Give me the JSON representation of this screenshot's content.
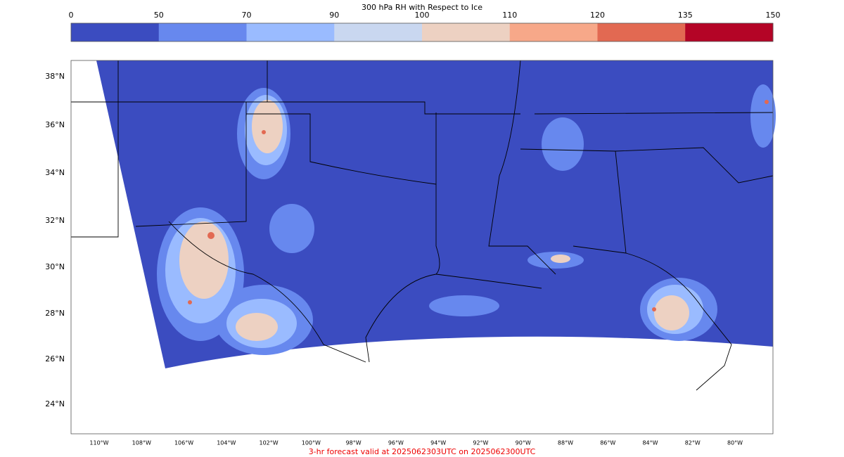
{
  "colorbar": {
    "title": "300 hPa RH with Respect to Ice",
    "levels": [
      0,
      50,
      70,
      90,
      100,
      110,
      120,
      135,
      150
    ],
    "colors": [
      "#3b4cc0",
      "#6788ee",
      "#9abbff",
      "#c9d7f0",
      "#edd1c2",
      "#f7a889",
      "#e26952",
      "#b40426"
    ]
  },
  "map": {
    "lat_labels": [
      "38°N",
      "36°N",
      "34°N",
      "32°N",
      "30°N",
      "28°N",
      "26°N",
      "24°N"
    ],
    "lon_labels": [
      "110°W",
      "108°W",
      "106°W",
      "104°W",
      "102°W",
      "100°W",
      "98°W",
      "96°W",
      "94°W",
      "92°W",
      "90°W",
      "88°W",
      "86°W",
      "84°W",
      "82°W",
      "80°W"
    ]
  },
  "footer": "3-hr forecast valid at 2025062303UTC on 2025062300UTC"
}
